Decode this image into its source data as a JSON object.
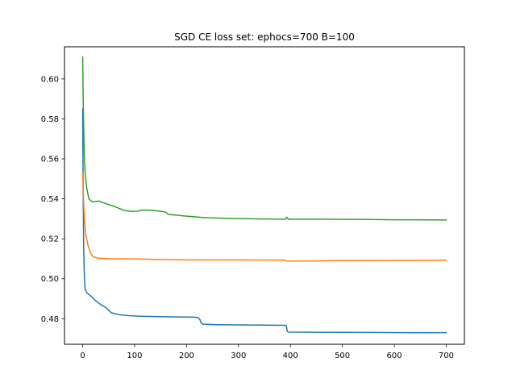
{
  "chart_data": {
    "type": "line",
    "title": "SGD CE loss set: ephocs=700 B=100",
    "xlabel": "",
    "ylabel": "",
    "xlim": [
      -35,
      735
    ],
    "ylim": [
      0.4672,
      0.6161
    ],
    "xticks": [
      0,
      100,
      200,
      300,
      400,
      500,
      600,
      700
    ],
    "yticks": [
      0.48,
      0.5,
      0.52,
      0.54,
      0.56,
      0.58,
      0.6
    ],
    "ytick_labels": [
      "0.48",
      "0.50",
      "0.52",
      "0.54",
      "0.56",
      "0.58",
      "0.60"
    ],
    "grid": false,
    "legend": "none",
    "series": [
      {
        "color": "#1f77b4",
        "points": [
          [
            0,
            0.585
          ],
          [
            1,
            0.54
          ],
          [
            2,
            0.515
          ],
          [
            3,
            0.503
          ],
          [
            4,
            0.497
          ],
          [
            5,
            0.4945
          ],
          [
            8,
            0.493
          ],
          [
            15,
            0.4915
          ],
          [
            25,
            0.489
          ],
          [
            35,
            0.487
          ],
          [
            45,
            0.4855
          ],
          [
            55,
            0.483
          ],
          [
            70,
            0.482
          ],
          [
            90,
            0.4815
          ],
          [
            110,
            0.4812
          ],
          [
            150,
            0.481
          ],
          [
            200,
            0.4808
          ],
          [
            220,
            0.4807
          ],
          [
            225,
            0.48
          ],
          [
            228,
            0.478
          ],
          [
            232,
            0.4772
          ],
          [
            260,
            0.477
          ],
          [
            300,
            0.4769
          ],
          [
            350,
            0.4768
          ],
          [
            392,
            0.4767
          ],
          [
            394,
            0.4736
          ],
          [
            396,
            0.4733
          ],
          [
            450,
            0.4732
          ],
          [
            550,
            0.4731
          ],
          [
            650,
            0.473
          ],
          [
            700,
            0.473
          ]
        ]
      },
      {
        "color": "#ff7f0e",
        "points": [
          [
            0,
            0.553
          ],
          [
            2,
            0.537
          ],
          [
            4,
            0.528
          ],
          [
            6,
            0.522
          ],
          [
            10,
            0.517
          ],
          [
            15,
            0.513
          ],
          [
            20,
            0.511
          ],
          [
            30,
            0.5103
          ],
          [
            50,
            0.51
          ],
          [
            100,
            0.5099
          ],
          [
            150,
            0.5096
          ],
          [
            200,
            0.5094
          ],
          [
            300,
            0.5094
          ],
          [
            390,
            0.5093
          ],
          [
            393,
            0.5088
          ],
          [
            400,
            0.5088
          ],
          [
            450,
            0.5089
          ],
          [
            500,
            0.5091
          ],
          [
            600,
            0.5092
          ],
          [
            700,
            0.5093
          ]
        ]
      },
      {
        "color": "#2ca02c",
        "points": [
          [
            0,
            0.611
          ],
          [
            1,
            0.59
          ],
          [
            2,
            0.575
          ],
          [
            3,
            0.562
          ],
          [
            5,
            0.552
          ],
          [
            8,
            0.545
          ],
          [
            12,
            0.54
          ],
          [
            18,
            0.5385
          ],
          [
            25,
            0.5387
          ],
          [
            32,
            0.5388
          ],
          [
            40,
            0.538
          ],
          [
            60,
            0.5363
          ],
          [
            80,
            0.5342
          ],
          [
            95,
            0.5337
          ],
          [
            105,
            0.5338
          ],
          [
            115,
            0.5344
          ],
          [
            130,
            0.5343
          ],
          [
            150,
            0.5338
          ],
          [
            160,
            0.5333
          ],
          [
            165,
            0.5322
          ],
          [
            180,
            0.5318
          ],
          [
            200,
            0.5313
          ],
          [
            240,
            0.5305
          ],
          [
            300,
            0.5301
          ],
          [
            350,
            0.5299
          ],
          [
            390,
            0.5298
          ],
          [
            393,
            0.5308
          ],
          [
            396,
            0.5298
          ],
          [
            450,
            0.5298
          ],
          [
            540,
            0.5297
          ],
          [
            600,
            0.5295
          ],
          [
            700,
            0.5294
          ]
        ]
      }
    ]
  }
}
